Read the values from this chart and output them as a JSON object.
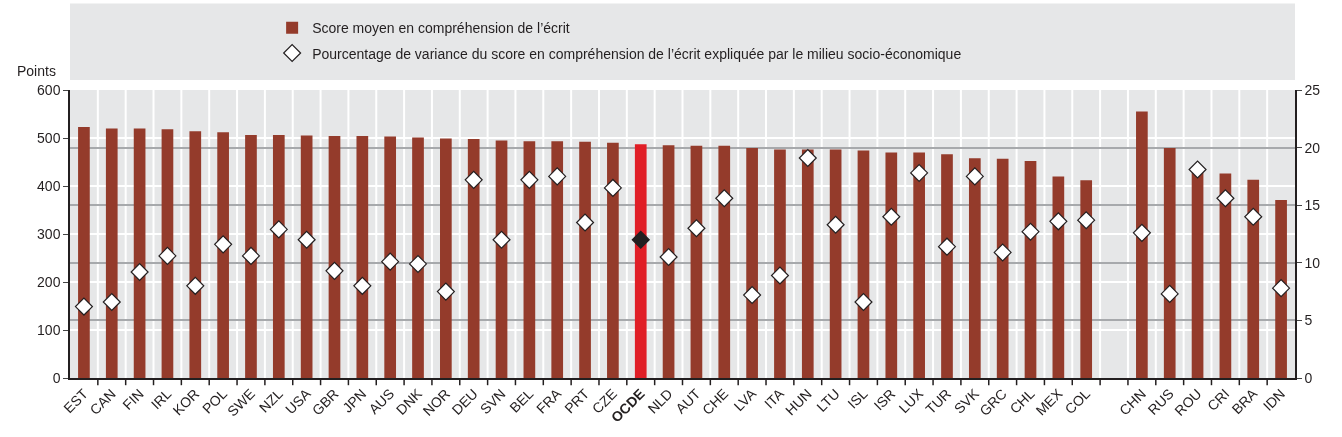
{
  "chart_data": {
    "type": "bar",
    "ylabel": "Points",
    "categories": [
      "EST",
      "CAN",
      "FIN",
      "IRL",
      "KOR",
      "POL",
      "SWE",
      "NZL",
      "USA",
      "GBR",
      "JPN",
      "AUS",
      "DNK",
      "NOR",
      "DEU",
      "SVN",
      "BEL",
      "FRA",
      "PRT",
      "CZE",
      "OCDE",
      "NLD",
      "AUT",
      "CHE",
      "LVA",
      "ITA",
      "HUN",
      "LTU",
      "ISL",
      "ISR",
      "LUX",
      "TUR",
      "SVK",
      "GRC",
      "CHL",
      "MEX",
      "COL",
      null,
      "CHN",
      "RUS",
      "ROU",
      "CRI",
      "BRA",
      "IDN"
    ],
    "series": [
      {
        "name": "Score moyen en compréhension de l’écrit",
        "color": "#943b2b",
        "colors": [
          "#943b2b",
          "#943b2b",
          "#943b2b",
          "#943b2b",
          "#943b2b",
          "#943b2b",
          "#943b2b",
          "#943b2b",
          "#943b2b",
          "#943b2b",
          "#943b2b",
          "#943b2b",
          "#943b2b",
          "#943b2b",
          "#943b2b",
          "#943b2b",
          "#943b2b",
          "#943b2b",
          "#943b2b",
          "#943b2b",
          "#e01e26",
          "#943b2b",
          "#943b2b",
          "#943b2b",
          "#943b2b",
          "#943b2b",
          "#943b2b",
          "#943b2b",
          "#943b2b",
          "#943b2b",
          "#943b2b",
          "#943b2b",
          "#943b2b",
          "#943b2b",
          "#943b2b",
          "#943b2b",
          "#943b2b",
          "#943b2b",
          "#943b2b",
          "#943b2b",
          "#943b2b",
          "#943b2b",
          "#943b2b",
          "#943b2b"
        ],
        "values": [
          523,
          520,
          520,
          518,
          514,
          512,
          506,
          506,
          505,
          504,
          504,
          503,
          501,
          499,
          498,
          495,
          493,
          493,
          492,
          490,
          487,
          485,
          484,
          484,
          479,
          476,
          476,
          476,
          474,
          470,
          470,
          466,
          458,
          457,
          452,
          420,
          412,
          null,
          555,
          479,
          428,
          426,
          413,
          371
        ]
      },
      {
        "name": "Pourcentage de variance du score en compréhension de l’écrit expliquée par le milieu socio-économique",
        "type": "scatter",
        "axis": "y2",
        "marker": "diamond",
        "color": "#ffffff",
        "colors": [
          "#ffffff",
          "#ffffff",
          "#ffffff",
          "#ffffff",
          "#ffffff",
          "#ffffff",
          "#ffffff",
          "#ffffff",
          "#ffffff",
          "#ffffff",
          "#ffffff",
          "#ffffff",
          "#ffffff",
          "#ffffff",
          "#ffffff",
          "#ffffff",
          "#ffffff",
          "#ffffff",
          "#ffffff",
          "#ffffff",
          "#231f20",
          "#ffffff",
          "#ffffff",
          "#ffffff",
          "#ffffff",
          "#ffffff",
          "#ffffff",
          "#ffffff",
          "#ffffff",
          "#ffffff",
          "#ffffff",
          "#ffffff",
          "#ffffff",
          "#ffffff",
          "#ffffff",
          "#ffffff",
          "#ffffff",
          "#ffffff",
          "#ffffff",
          "#ffffff",
          "#ffffff",
          "#ffffff",
          "#ffffff",
          "#ffffff"
        ],
        "values": [
          6.2,
          6.6,
          9.2,
          10.6,
          8.0,
          11.6,
          10.6,
          12.9,
          12.0,
          9.3,
          8.0,
          10.1,
          9.9,
          7.5,
          17.2,
          12.0,
          17.2,
          17.5,
          13.5,
          16.5,
          12.0,
          10.5,
          13.0,
          15.6,
          7.2,
          8.9,
          19.1,
          13.3,
          6.6,
          14.0,
          17.8,
          11.4,
          17.5,
          10.9,
          12.7,
          13.6,
          13.7,
          null,
          12.6,
          7.3,
          18.1,
          15.6,
          14.0,
          7.8
        ]
      }
    ],
    "ylim": [
      0,
      600
    ],
    "yticks": [
      0,
      100,
      200,
      300,
      400,
      500,
      600
    ],
    "y2lim": [
      0,
      25
    ],
    "y2ticks": [
      0,
      5,
      10,
      15,
      20,
      25
    ],
    "grid": true,
    "legend": "top"
  }
}
